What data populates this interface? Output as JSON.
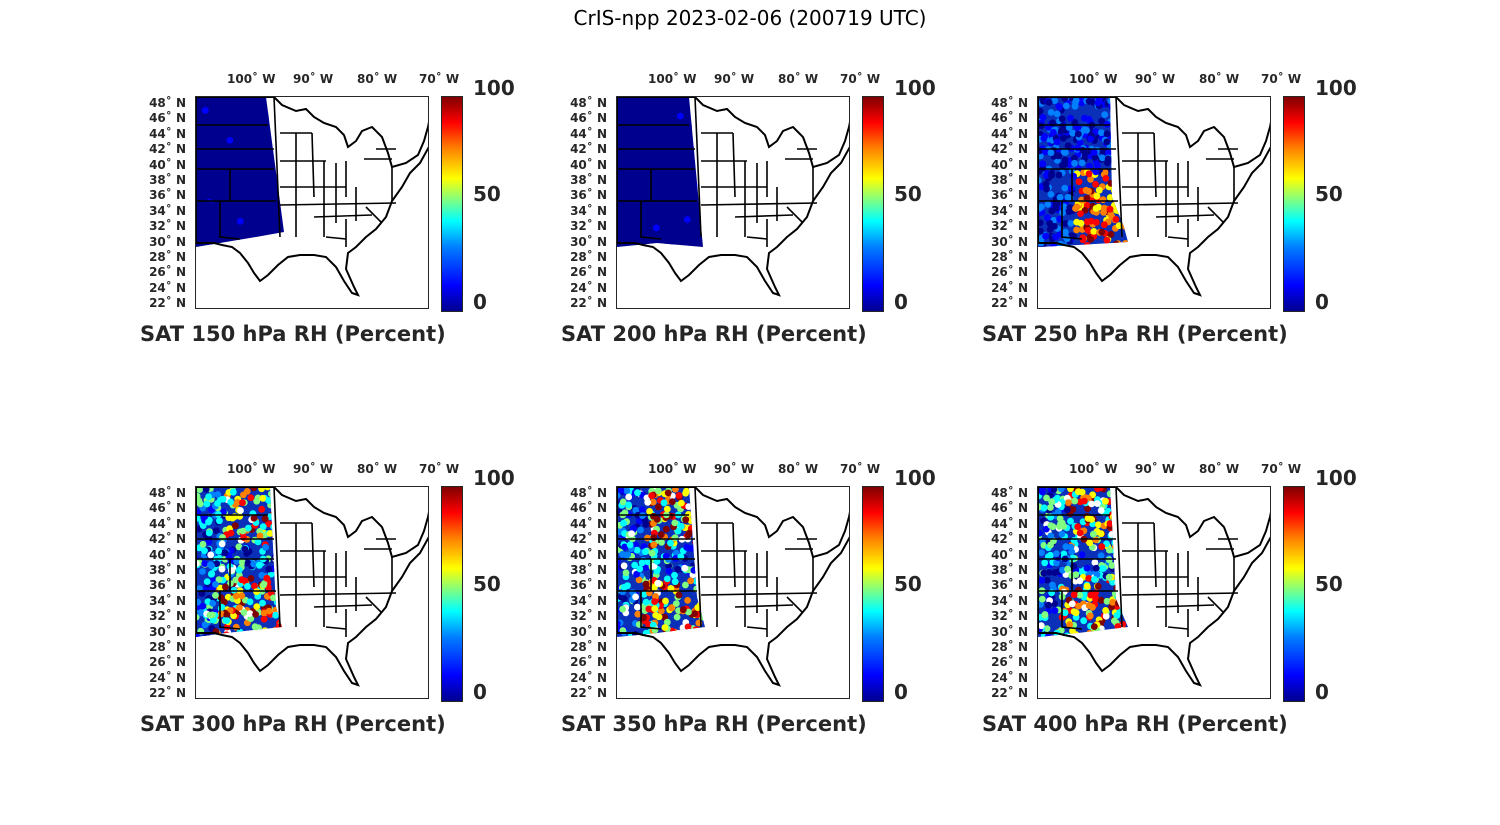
{
  "title": "CrIS-npp 2023-02-06 (200719 UTC)",
  "lon_labels": [
    "100˚ W",
    "90˚ W",
    "80˚ W",
    "70˚ W"
  ],
  "lat_labels": [
    "48˚ N",
    "46˚ N",
    "44˚ N",
    "42˚ N",
    "40˚ N",
    "38˚ N",
    "36˚ N",
    "34˚ N",
    "32˚ N",
    "30˚ N",
    "28˚ N",
    "26˚ N",
    "24˚ N",
    "22˚ N"
  ],
  "colorbar": {
    "min": "0",
    "mid": "50",
    "max": "100",
    "colormap": "jet"
  },
  "colors": {
    "dry": "#00008f",
    "swath": "#0a2fb8",
    "border": "#000000"
  },
  "panels": [
    {
      "caption": "SAT 150 hPa RH (Percent)",
      "level_hpa": 150
    },
    {
      "caption": "SAT 200 hPa RH (Percent)",
      "level_hpa": 200
    },
    {
      "caption": "SAT 250 hPa RH (Percent)",
      "level_hpa": 250
    },
    {
      "caption": "SAT 300 hPa RH (Percent)",
      "level_hpa": 300
    },
    {
      "caption": "SAT 350 hPa RH (Percent)",
      "level_hpa": 350
    },
    {
      "caption": "SAT 400 hPa RH (Percent)",
      "level_hpa": 400
    }
  ]
}
